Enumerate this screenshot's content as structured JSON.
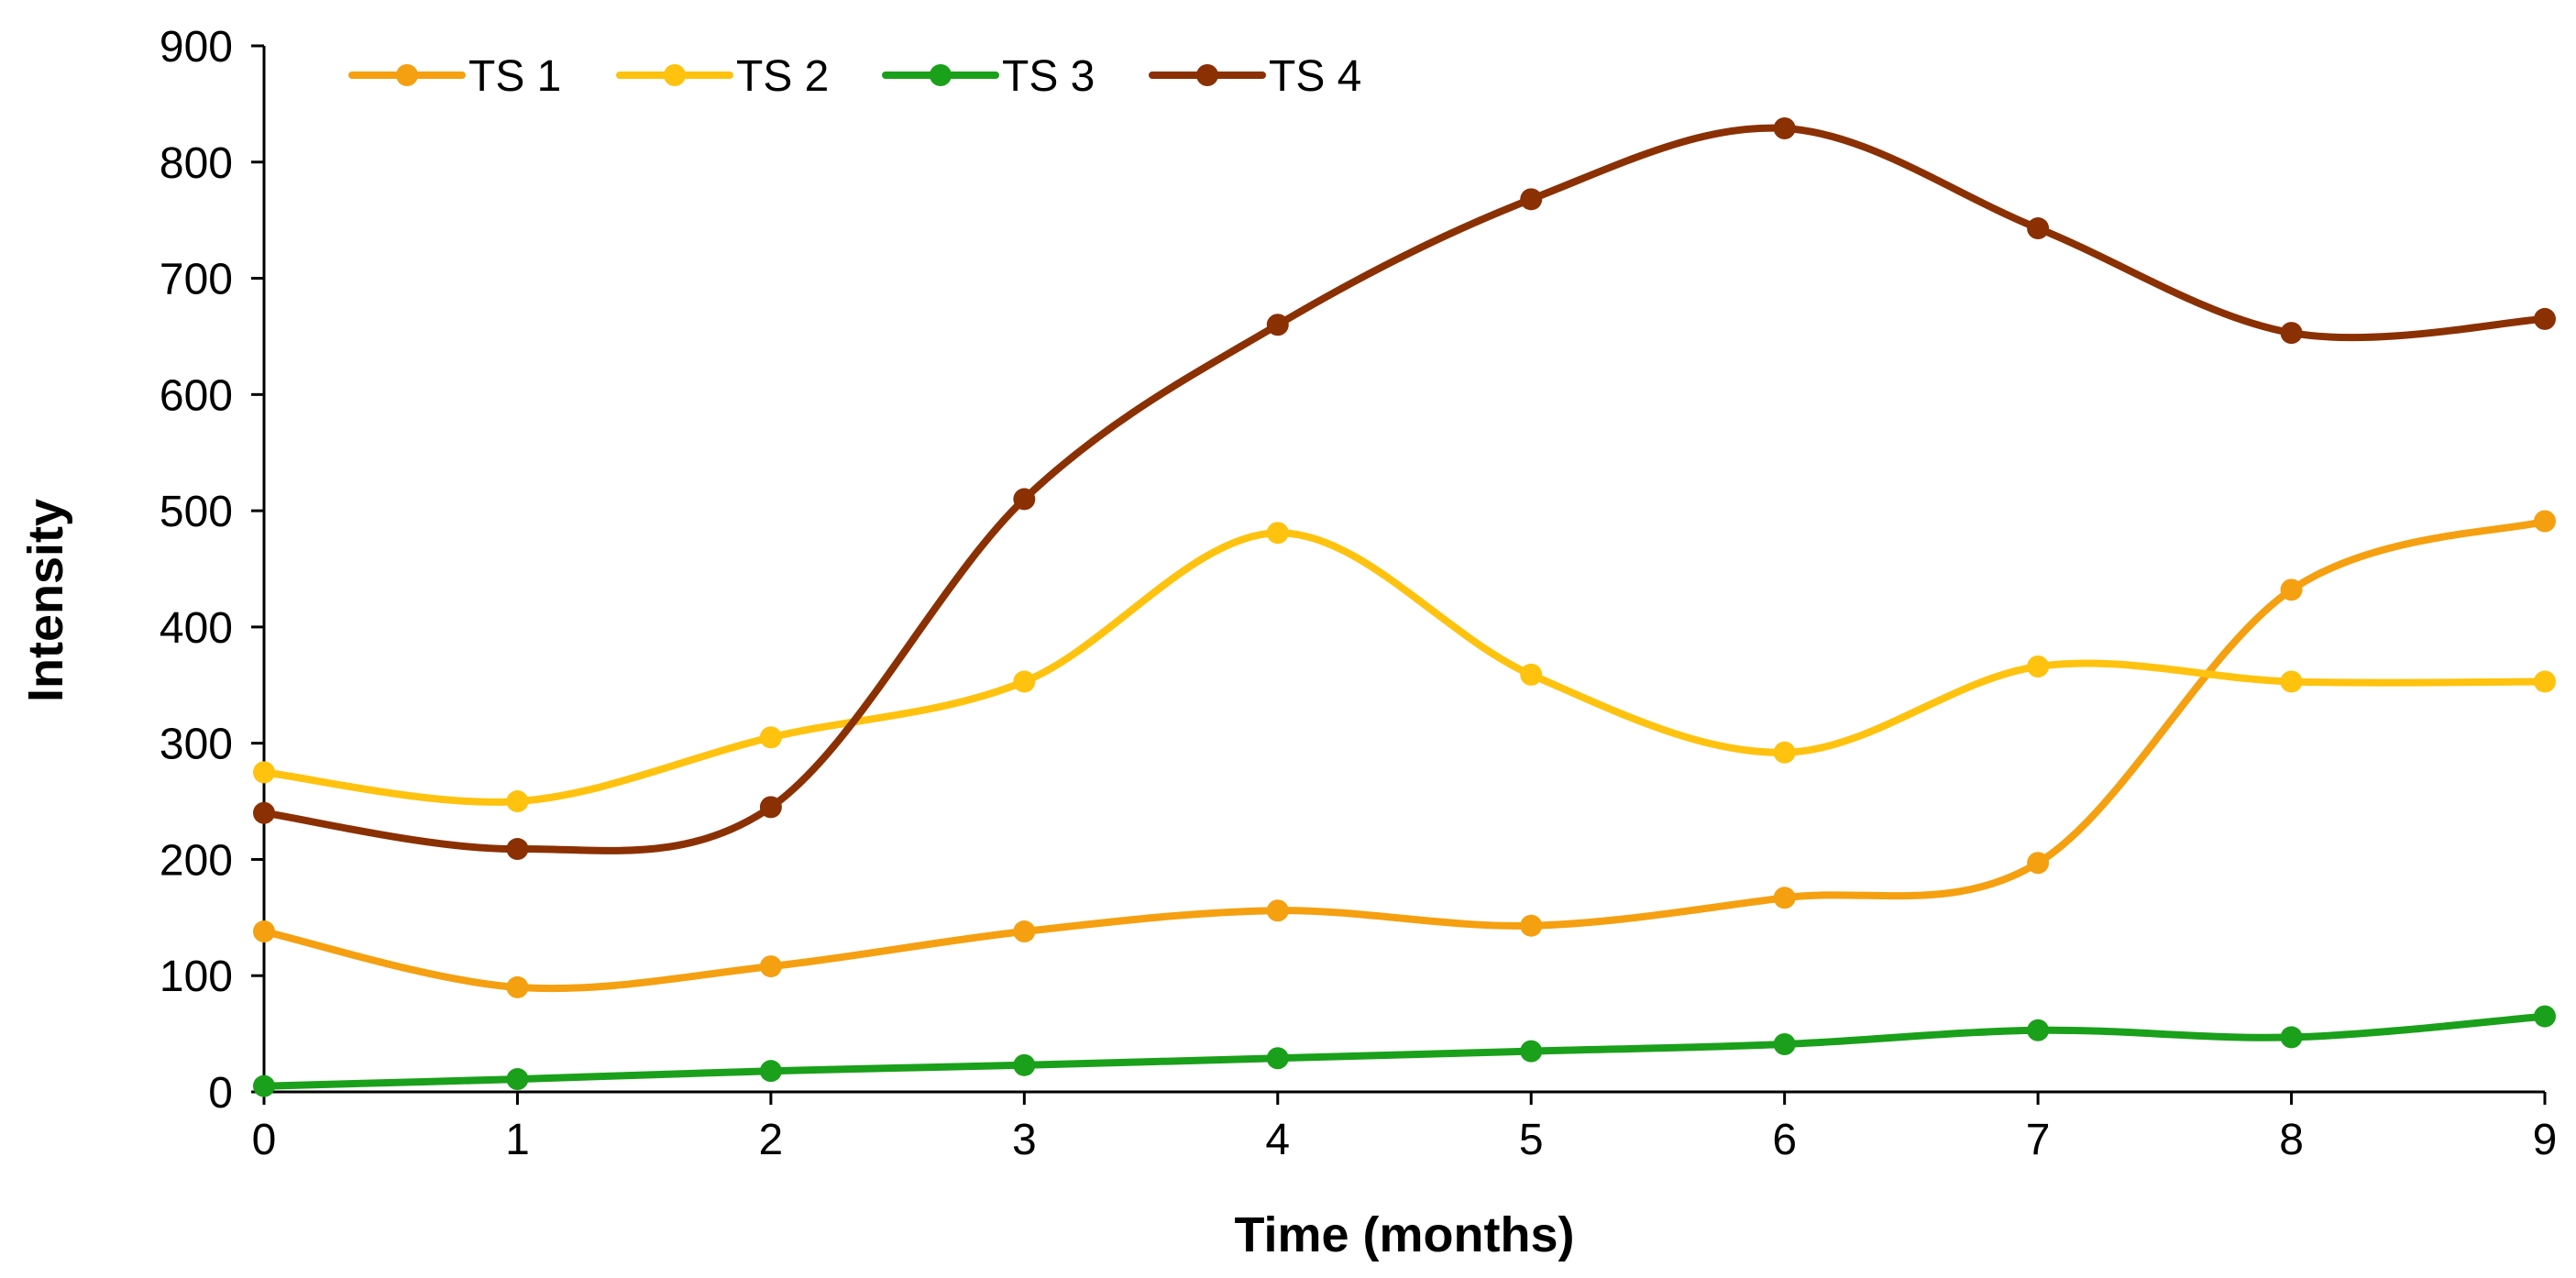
{
  "chart_data": {
    "type": "line",
    "title": "",
    "xlabel": "Time (months)",
    "ylabel": "Intensity",
    "x": [
      0,
      1,
      2,
      3,
      4,
      5,
      6,
      7,
      8,
      9
    ],
    "x_tick_labels": [
      "0",
      "1",
      "2",
      "3",
      "4",
      "5",
      "6",
      "7",
      "8",
      "9"
    ],
    "xlim": [
      0,
      9
    ],
    "ylim": [
      0,
      900
    ],
    "y_ticks": [
      0,
      100,
      200,
      300,
      400,
      500,
      600,
      700,
      800,
      900
    ],
    "y_tick_labels": [
      "0",
      "100",
      "200",
      "300",
      "400",
      "500",
      "600",
      "700",
      "800",
      "900"
    ],
    "grid": false,
    "smooth": true,
    "legend_position": "top-left",
    "series": [
      {
        "name": "TS 1",
        "color": "#F5A011",
        "values": [
          138,
          90,
          108,
          138,
          156,
          143,
          167,
          197,
          432,
          491
        ]
      },
      {
        "name": "TS 2",
        "color": "#FFC20E",
        "values": [
          275,
          250,
          305,
          353,
          481,
          359,
          292,
          366,
          353,
          353
        ]
      },
      {
        "name": "TS 3",
        "color": "#1AA01A",
        "values": [
          5,
          11,
          18,
          23,
          29,
          35,
          41,
          53,
          47,
          65
        ]
      },
      {
        "name": "TS 4",
        "color": "#8B3003",
        "values": [
          240,
          209,
          245,
          510,
          660,
          768,
          829,
          743,
          653,
          665
        ]
      }
    ]
  }
}
